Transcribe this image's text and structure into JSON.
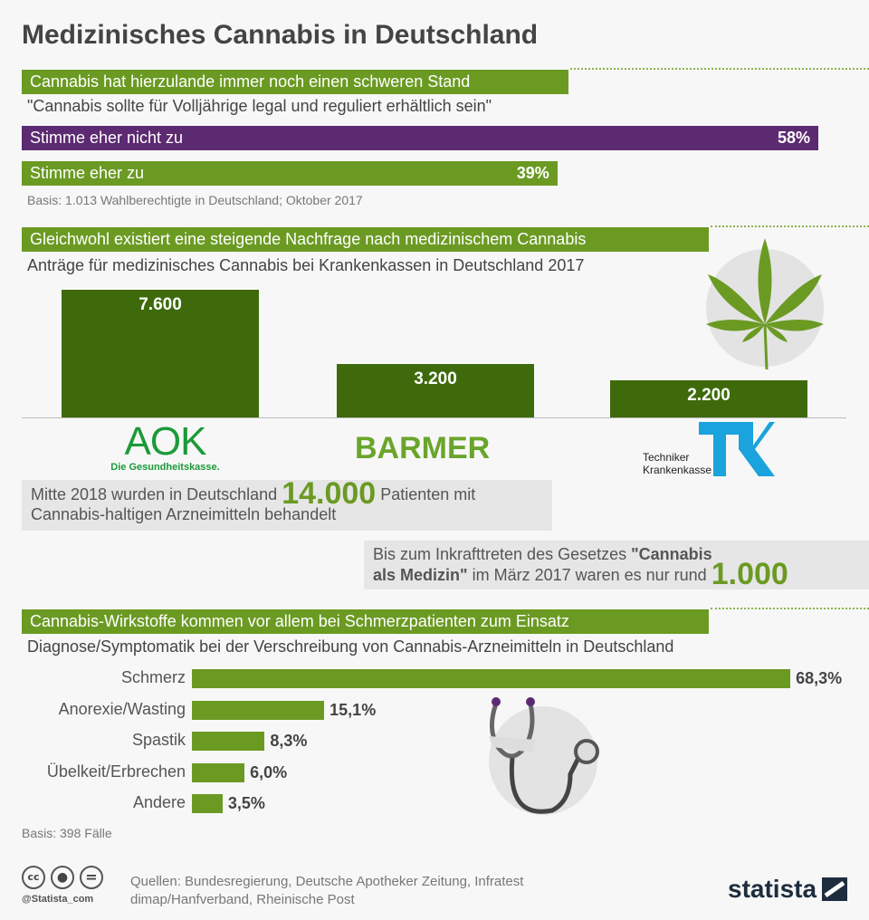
{
  "title": "Medizinisches Cannabis in Deutschland",
  "colors": {
    "green": "#6b9a23",
    "dark_green": "#3e6a0b",
    "purple": "#5c2a70",
    "aok": "#1c9a3a",
    "barmer": "#6aa52b",
    "tk": "#1aa3dc"
  },
  "chart_data": [
    {
      "type": "bar",
      "orientation": "horizontal",
      "title": "Cannabis hat hierzulande immer noch einen schweren Stand",
      "subtitle": "\"Cannabis sollte für Volljährige legal und reguliert erhältlich sein\"",
      "categories": [
        "Stimme eher nicht zu",
        "Stimme eher zu"
      ],
      "values": [
        58,
        39
      ],
      "value_labels": [
        "58%",
        "39%"
      ],
      "note": "Basis: 1.013 Wahlberechtigte in Deutschland; Oktober 2017"
    },
    {
      "type": "bar",
      "orientation": "vertical",
      "title": "Gleichwohl existiert eine steigende Nachfrage nach medizinischem Cannabis",
      "subtitle": "Anträge für medizinisches Cannabis bei Krankenkassen in Deutschland 2017",
      "categories": [
        "AOK",
        "BARMER",
        "Techniker Krankenkasse"
      ],
      "values": [
        7600,
        3200,
        2200
      ],
      "value_labels": [
        "7.600",
        "3.200",
        "2.200"
      ]
    },
    {
      "type": "bar",
      "orientation": "horizontal",
      "title": "Cannabis-Wirkstoffe kommen vor allem bei Schmerzpatienten zum Einsatz",
      "subtitle": "Diagnose/Symptomatik bei der Verschreibung von Cannabis-Arzneimitteln in Deutschland",
      "categories": [
        "Schmerz",
        "Anorexie/Wasting",
        "Spastik",
        "Übelkeit/Erbrechen",
        "Andere"
      ],
      "values": [
        68.3,
        15.1,
        8.3,
        6.0,
        3.5
      ],
      "value_labels": [
        "68,3%",
        "15,1%",
        "8,3%",
        "6,0%",
        "3,5%"
      ],
      "note": "Basis: 398 Fälle"
    }
  ],
  "logos": {
    "aok": "AOK",
    "aok_sub": "Die Gesundheitskasse.",
    "barmer": "BARMER",
    "tk_line1": "Techniker",
    "tk_line2": "Krankenkasse",
    "tk_mark": "TK"
  },
  "facts": {
    "f1_pre": "Mitte 2018 wurden in Deutschland",
    "f1_num": "14.000",
    "f1_post": "Patienten mit",
    "f1_line2": "Cannabis-haltigen Arzneimitteln behandelt",
    "f2_pre": "Bis zum Inkrafttreten des Gesetzes",
    "f2_bold1": "\"Cannabis",
    "f2_bold2": "als Medizin\"",
    "f2_post": "im März 2017 waren es nur rund",
    "f2_num": "1.000"
  },
  "footer": {
    "sources_line1": "Quellen: Bundesregierung, Deutsche Apotheker Zeitung, Infratest",
    "sources_line2": "dimap/Hanfverband, Rheinische Post",
    "handle": "@Statista_com",
    "brand": "statista",
    "cc": "cc"
  }
}
